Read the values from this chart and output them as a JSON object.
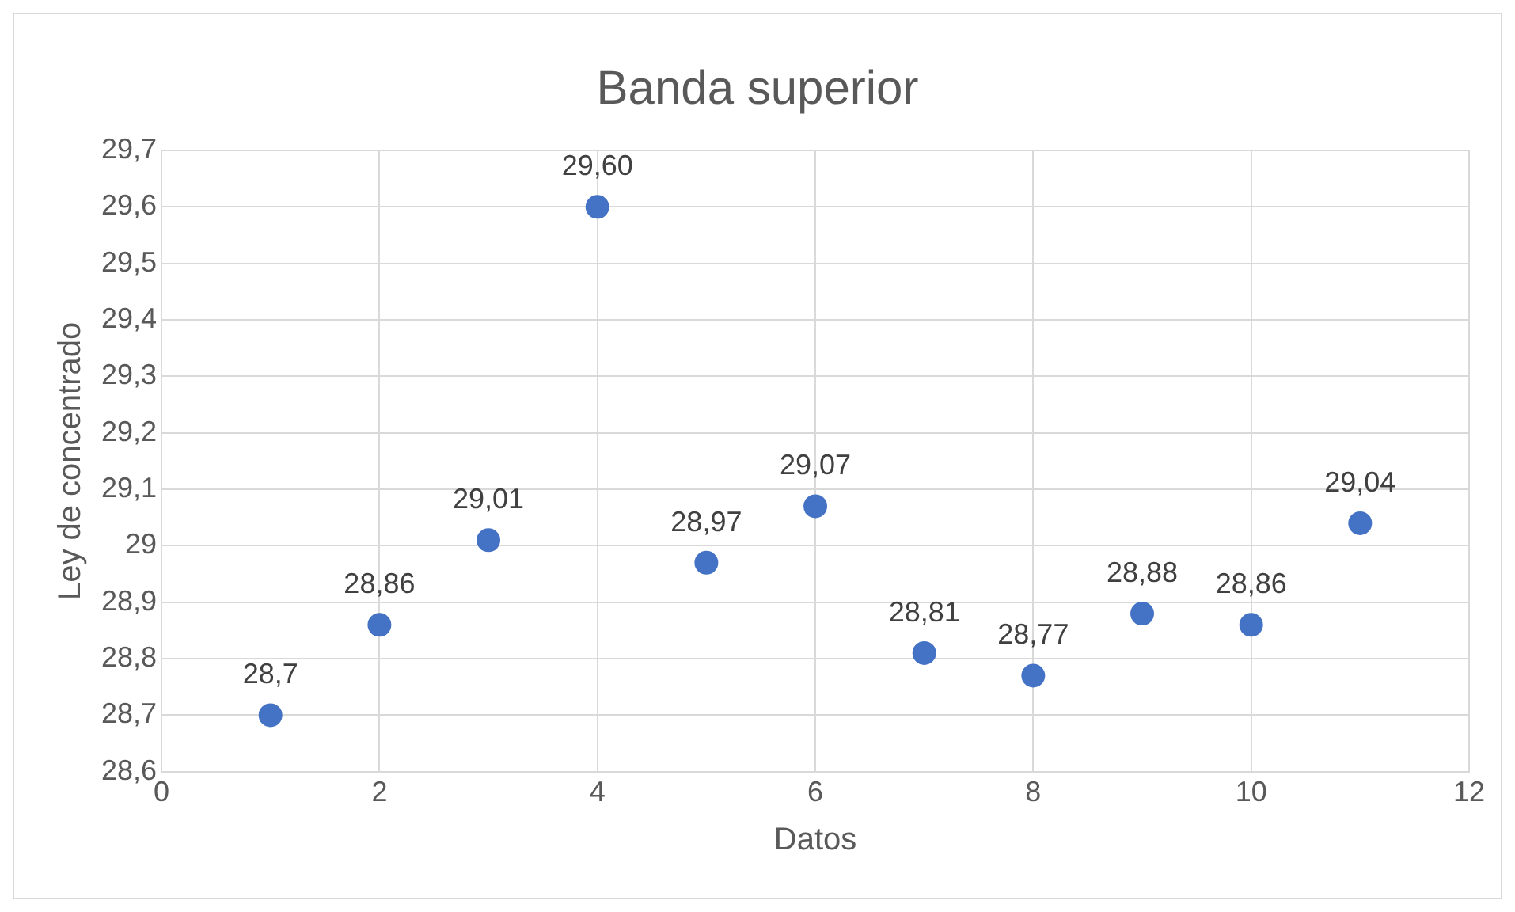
{
  "chart_data": {
    "type": "scatter",
    "title": "Banda superior",
    "xlabel": "Datos",
    "ylabel": "Ley de concentrado",
    "x": [
      1,
      2,
      3,
      4,
      5,
      6,
      7,
      8,
      9,
      10,
      11
    ],
    "series": [
      {
        "color": "#4472c4",
        "values": [
          28.7,
          28.86,
          29.01,
          29.6,
          28.97,
          29.07,
          28.81,
          28.77,
          28.88,
          28.86,
          29.04
        ],
        "value_labels": [
          "28,7",
          "28,86",
          "29,01",
          "29,60",
          "28,97",
          "29,07",
          "28,81",
          "28,77",
          "28,88",
          "28,86",
          "29,04"
        ]
      }
    ],
    "xlim": [
      0,
      12
    ],
    "xticks": [
      0,
      2,
      4,
      6,
      8,
      10,
      12
    ],
    "ylim": [
      28.6,
      29.7
    ],
    "yticks": [
      {
        "value": 28.6,
        "label": "28,6"
      },
      {
        "value": 28.7,
        "label": "28,7"
      },
      {
        "value": 28.8,
        "label": "28,8"
      },
      {
        "value": 28.9,
        "label": "28,9"
      },
      {
        "value": 29,
        "label": "29"
      },
      {
        "value": 29.1,
        "label": "29,1"
      },
      {
        "value": 29.2,
        "label": "29,2"
      },
      {
        "value": 29.3,
        "label": "29,3"
      },
      {
        "value": 29.4,
        "label": "29,4"
      },
      {
        "value": 29.5,
        "label": "29,5"
      },
      {
        "value": 29.6,
        "label": "29,6"
      },
      {
        "value": 29.7,
        "label": "29,7"
      }
    ],
    "grid": true,
    "legend": false,
    "marker": "circle"
  }
}
